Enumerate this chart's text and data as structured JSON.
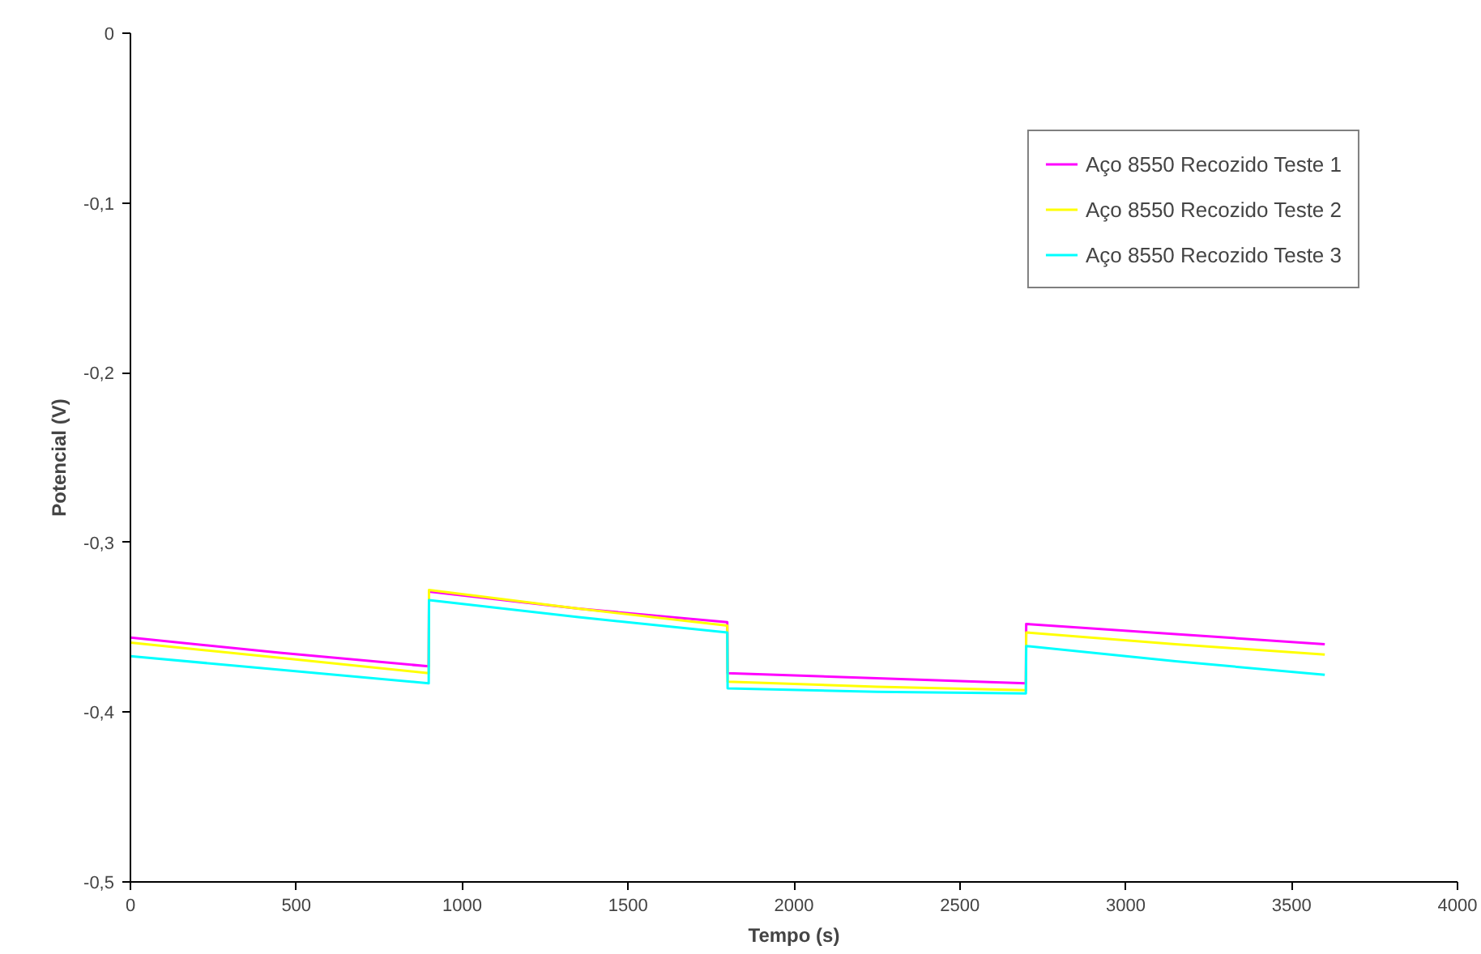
{
  "chart_data": {
    "type": "line",
    "xlabel": "Tempo (s)",
    "ylabel": "Potencial (V)",
    "xlim": [
      0,
      4000
    ],
    "ylim": [
      -0.5,
      0
    ],
    "xticks": [
      0,
      500,
      1000,
      1500,
      2000,
      2500,
      3000,
      3500,
      4000
    ],
    "yticks": [
      {
        "value": -0.5,
        "label": "-0,5"
      },
      {
        "value": -0.4,
        "label": "-0,4"
      },
      {
        "value": -0.3,
        "label": "-0,3"
      },
      {
        "value": -0.2,
        "label": "-0,2"
      },
      {
        "value": -0.1,
        "label": "-0,1"
      },
      0
    ],
    "x": [
      0,
      450,
      899,
      900,
      1350,
      1799,
      1800,
      2250,
      2699,
      2700,
      3150,
      3600
    ],
    "grid": false,
    "legend": "top right",
    "marker": "none",
    "line_style": "solid",
    "series": [
      {
        "name": "Aço 8550 Recozido Teste 1",
        "color": "#ff00ff",
        "values": [
          -0.356,
          -0.365,
          -0.373,
          -0.329,
          -0.339,
          -0.347,
          -0.377,
          -0.38,
          -0.383,
          -0.348,
          -0.354,
          -0.36
        ]
      },
      {
        "name": "Aço 8550 Recozido Teste 2",
        "color": "#ffff00",
        "values": [
          -0.359,
          -0.368,
          -0.377,
          -0.328,
          -0.339,
          -0.349,
          -0.382,
          -0.385,
          -0.387,
          -0.353,
          -0.36,
          -0.366
        ]
      },
      {
        "name": "Aço 8550 Recozido Teste 3",
        "color": "#00ffff",
        "values": [
          -0.367,
          -0.375,
          -0.383,
          -0.334,
          -0.344,
          -0.353,
          -0.386,
          -0.388,
          -0.389,
          -0.361,
          -0.37,
          -0.378
        ]
      }
    ]
  }
}
